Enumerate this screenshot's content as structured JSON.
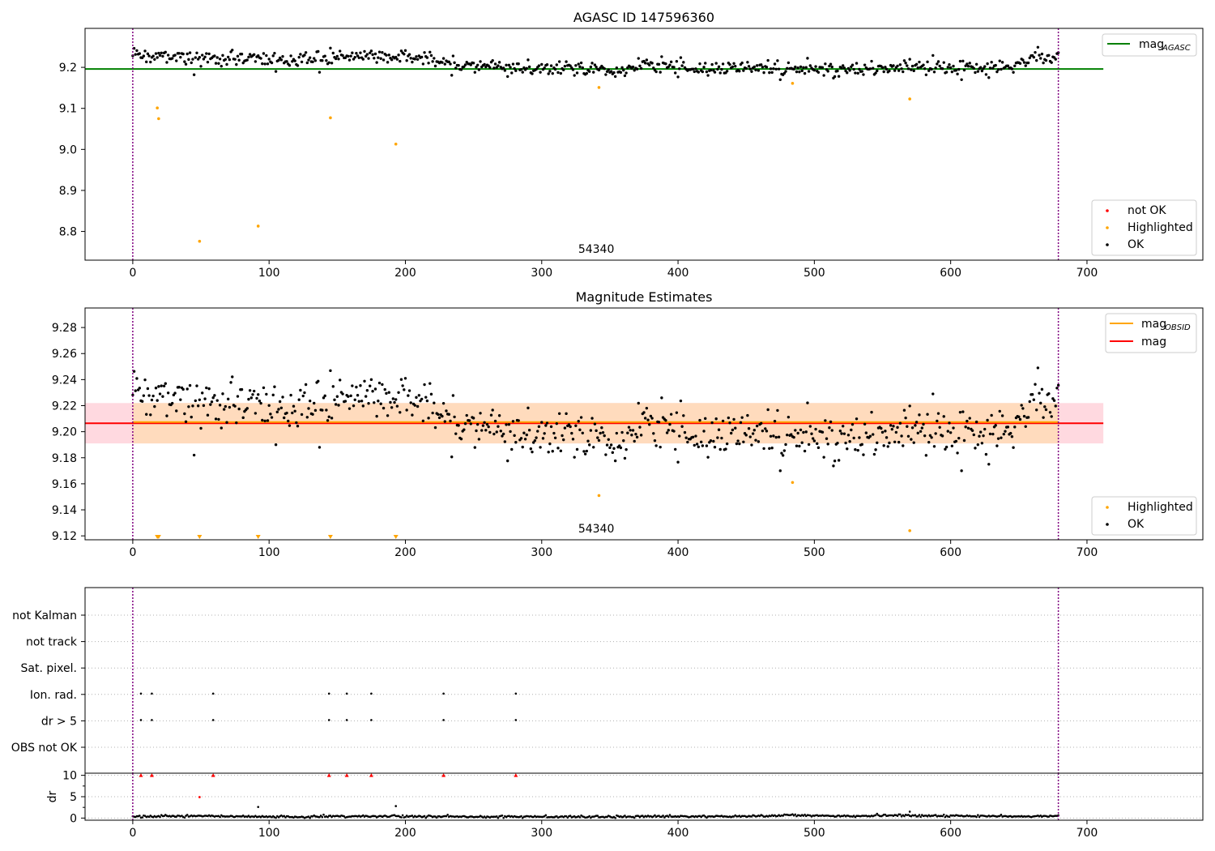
{
  "figure_title": "AGASC ID 147596360",
  "colors": {
    "ok": "#000000",
    "not_ok": "#ff0000",
    "highlighted": "#ffa500",
    "mag_agasc": "#008000",
    "mag_obsid": "#ffa500",
    "mag": "#ff0000",
    "obs_boundary": "#800080",
    "band_red": "#ffc0cb",
    "band_orange": "#ffdab9"
  },
  "chart_data": [
    {
      "type": "scatter",
      "name_ref": "top",
      "title": "AGASC ID 147596360",
      "xlim": [
        -35,
        785
      ],
      "ylim": [
        8.73,
        9.295
      ],
      "xticks": [
        0,
        100,
        200,
        300,
        400,
        500,
        600,
        700
      ],
      "yticks": [
        8.8,
        8.9,
        9.0,
        9.1,
        9.2
      ],
      "ytick_labels": [
        "8.8",
        "8.9",
        "9.0",
        "9.1",
        "9.2"
      ],
      "grid": false,
      "obs_boundaries": [
        0,
        679
      ],
      "obsid_label": "54340",
      "reference_lines": [
        {
          "name": "mag_AGASC",
          "y": 9.196,
          "x": [
            -35,
            712
          ]
        }
      ],
      "ok_trend": [
        [
          0,
          9.23
        ],
        [
          20,
          9.228
        ],
        [
          40,
          9.222
        ],
        [
          60,
          9.22
        ],
        [
          80,
          9.222
        ],
        [
          100,
          9.222
        ],
        [
          120,
          9.22
        ],
        [
          140,
          9.224
        ],
        [
          160,
          9.23
        ],
        [
          180,
          9.23
        ],
        [
          200,
          9.225
        ],
        [
          220,
          9.218
        ],
        [
          240,
          9.205
        ],
        [
          260,
          9.203
        ],
        [
          280,
          9.198
        ],
        [
          300,
          9.2
        ],
        [
          320,
          9.2
        ],
        [
          340,
          9.195
        ],
        [
          360,
          9.19
        ],
        [
          380,
          9.206
        ],
        [
          400,
          9.2
        ],
        [
          420,
          9.196
        ],
        [
          440,
          9.197
        ],
        [
          460,
          9.195
        ],
        [
          480,
          9.193
        ],
        [
          500,
          9.198
        ],
        [
          520,
          9.193
        ],
        [
          540,
          9.198
        ],
        [
          560,
          9.196
        ],
        [
          580,
          9.198
        ],
        [
          600,
          9.2
        ],
        [
          620,
          9.2
        ],
        [
          640,
          9.205
        ],
        [
          660,
          9.22
        ],
        [
          679,
          9.222
        ]
      ],
      "highlighted": [
        [
          18,
          9.101
        ],
        [
          19,
          9.075
        ],
        [
          49,
          8.776
        ],
        [
          92,
          8.813
        ],
        [
          145,
          9.077
        ],
        [
          193,
          9.013
        ],
        [
          342,
          9.151
        ],
        [
          484,
          9.161
        ],
        [
          570,
          9.123
        ]
      ],
      "legend_top": [
        {
          "label": "mag",
          "sub": "AGASC"
        }
      ],
      "legend_bottom": [
        "not OK",
        "Highlighted",
        "OK"
      ]
    },
    {
      "type": "scatter",
      "name_ref": "middle",
      "title": "Magnitude Estimates",
      "xlim": [
        -35,
        785
      ],
      "ylim": [
        9.117,
        9.295
      ],
      "xticks": [
        0,
        100,
        200,
        300,
        400,
        500,
        600,
        700
      ],
      "yticks": [
        9.12,
        9.14,
        9.16,
        9.18,
        9.2,
        9.22,
        9.24,
        9.26,
        9.28
      ],
      "ytick_labels": [
        "9.12",
        "9.14",
        "9.16",
        "9.18",
        "9.20",
        "9.22",
        "9.24",
        "9.26",
        "9.28"
      ],
      "grid": false,
      "obs_boundaries": [
        0,
        679
      ],
      "obsid_label": "54340",
      "mag": 9.2065,
      "mag_obsid": 9.2065,
      "band": [
        9.191,
        9.222
      ],
      "band_extent_red": [
        -35,
        712
      ],
      "band_extent_orange": [
        0,
        679
      ],
      "highlighted": [
        [
          342,
          9.151
        ],
        [
          484,
          9.161
        ],
        [
          570,
          9.124
        ]
      ],
      "clipped_markers_x": [
        18,
        19,
        49,
        92,
        145,
        193
      ],
      "legend_top": [
        {
          "label": "mag",
          "sub": "OBSID"
        },
        {
          "label": "mag",
          "sub": ""
        }
      ],
      "legend_bottom": [
        "Highlighted",
        "OK"
      ]
    },
    {
      "type": "scatter",
      "name_ref": "flags",
      "xlim": [
        -35,
        785
      ],
      "categories": [
        "not Kalman",
        "not track",
        "Sat. pixel.",
        "Ion. rad.",
        "dr > 5",
        "OBS not OK"
      ],
      "grid": true,
      "obs_boundaries": [
        0,
        679
      ],
      "flagged_x": {
        "Ion. rad.": [
          6,
          14,
          59,
          144,
          157,
          175,
          228,
          281
        ],
        "dr > 5": [
          6,
          14,
          59,
          144,
          157,
          175,
          228,
          281
        ]
      }
    },
    {
      "type": "scatter",
      "name_ref": "dr",
      "xlim": [
        -35,
        785
      ],
      "ylim": [
        -0.5,
        10.5
      ],
      "ylabel": "dr",
      "xticks": [
        0,
        100,
        200,
        300,
        400,
        500,
        600,
        700
      ],
      "yticks": [
        0,
        5,
        10
      ],
      "ytick_labels": [
        "0",
        "5",
        "10"
      ],
      "grid": true,
      "obs_boundaries": [
        0,
        679
      ],
      "dr_trend": [
        [
          0,
          0.3
        ],
        [
          50,
          0.5
        ],
        [
          100,
          0.3
        ],
        [
          150,
          0.4
        ],
        [
          200,
          0.4
        ],
        [
          250,
          0.3
        ],
        [
          300,
          0.3
        ],
        [
          350,
          0.3
        ],
        [
          400,
          0.4
        ],
        [
          450,
          0.4
        ],
        [
          480,
          0.7
        ],
        [
          520,
          0.5
        ],
        [
          560,
          0.6
        ],
        [
          600,
          0.5
        ],
        [
          640,
          0.4
        ],
        [
          679,
          0.4
        ]
      ],
      "not_ok_clipped_x": [
        6,
        14,
        59,
        144,
        157,
        175,
        228,
        281
      ],
      "not_ok_points": [
        [
          49,
          4.9
        ]
      ],
      "ok_outliers": [
        [
          92,
          2.6
        ],
        [
          193,
          2.8
        ],
        [
          570,
          1.5
        ]
      ]
    }
  ]
}
